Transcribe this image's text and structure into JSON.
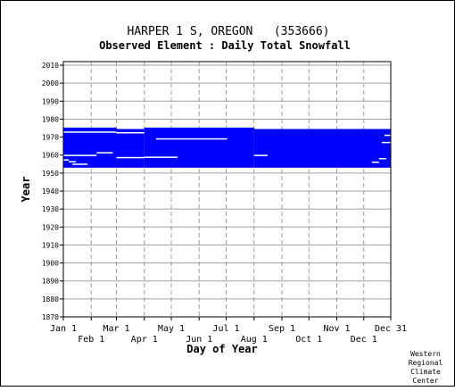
{
  "chart_data": {
    "type": "heatmap",
    "title": "HARPER 1 S, OREGON   (353666)",
    "subtitle": "Observed Element : Daily Total Snowfall",
    "xlabel": "Day of Year",
    "ylabel": "Year",
    "ylim": [
      1870,
      2012
    ],
    "xlim": [
      1,
      365
    ],
    "y_ticks": [
      1870,
      1880,
      1890,
      1900,
      1910,
      1920,
      1930,
      1940,
      1950,
      1960,
      1970,
      1980,
      1990,
      2000,
      2010
    ],
    "x_ticks": [
      {
        "label": "Jan 1",
        "day": 1,
        "row": 1
      },
      {
        "label": "Feb 1",
        "day": 32,
        "row": 2
      },
      {
        "label": "Mar 1",
        "day": 60,
        "row": 1
      },
      {
        "label": "Apr 1",
        "day": 91,
        "row": 2
      },
      {
        "label": "May 1",
        "day": 121,
        "row": 1
      },
      {
        "label": "Jun 1",
        "day": 152,
        "row": 2
      },
      {
        "label": "Jul 1",
        "day": 182,
        "row": 1
      },
      {
        "label": "Aug 1",
        "day": 213,
        "row": 2
      },
      {
        "label": "Sep 1",
        "day": 244,
        "row": 1
      },
      {
        "label": "Oct 1",
        "day": 274,
        "row": 2
      },
      {
        "label": "Nov 1",
        "day": 305,
        "row": 1
      },
      {
        "label": "Dec 1",
        "day": 335,
        "row": 2
      },
      {
        "label": "Dec 31",
        "day": 365,
        "row": 1
      }
    ],
    "grid": true,
    "data_color": "#0000ff",
    "series": [
      {
        "x0": 1,
        "x1": 60,
        "y0": 1953.0,
        "y1": 1975.3
      },
      {
        "x0": 60,
        "x1": 91,
        "y0": 1953.0,
        "y1": 1974.5
      },
      {
        "x0": 91,
        "x1": 213,
        "y0": 1953.0,
        "y1": 1975.3
      },
      {
        "x0": 213,
        "x1": 365,
        "y0": 1953.0,
        "y1": 1974.5
      }
    ],
    "gaps": [
      {
        "x0": 1,
        "x1": 60,
        "y": 1972.8
      },
      {
        "x0": 60,
        "x1": 91,
        "y": 1972.4
      },
      {
        "x0": 1,
        "x1": 38,
        "y": 1959.8
      },
      {
        "x0": 38,
        "x1": 56,
        "y": 1961.3
      },
      {
        "x0": 60,
        "x1": 91,
        "y": 1958.6
      },
      {
        "x0": 91,
        "x1": 128,
        "y": 1958.8
      },
      {
        "x0": 104,
        "x1": 183,
        "y": 1969.0
      },
      {
        "x0": 213,
        "x1": 228,
        "y": 1959.8
      },
      {
        "x0": 1,
        "x1": 7,
        "y": 1957.3
      },
      {
        "x0": 7,
        "x1": 15,
        "y": 1956.3
      },
      {
        "x0": 11,
        "x1": 28,
        "y": 1954.9
      },
      {
        "x0": 352,
        "x1": 360,
        "y": 1958.0
      },
      {
        "x0": 355,
        "x1": 365,
        "y": 1967.0
      },
      {
        "x0": 358,
        "x1": 365,
        "y": 1971.0
      },
      {
        "x0": 344,
        "x1": 352,
        "y": 1956.0
      }
    ],
    "gap_color": "#ffffff"
  },
  "credit": [
    "Western",
    "Regional",
    "Climate",
    "Center"
  ]
}
